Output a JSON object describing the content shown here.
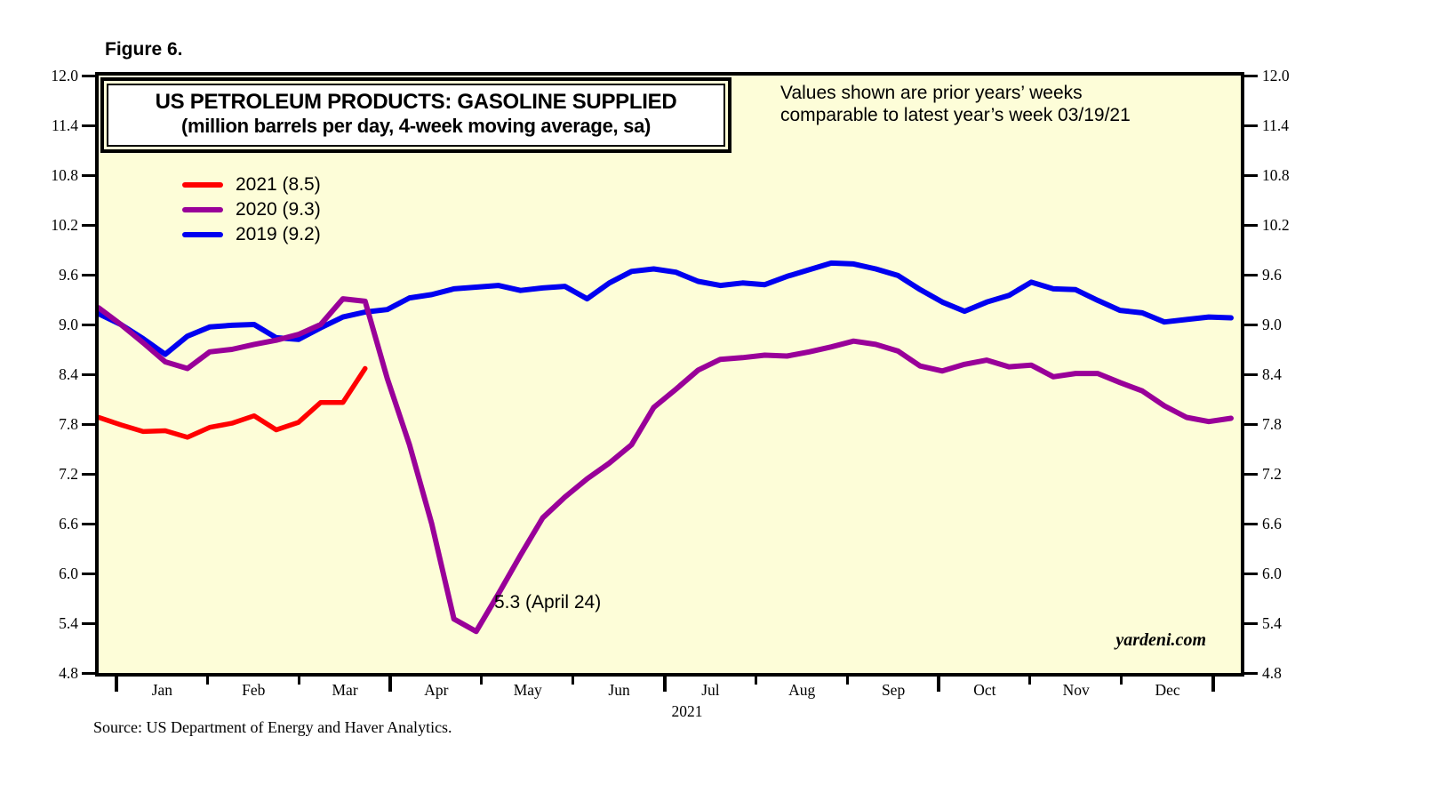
{
  "figure_label": "Figure 6.",
  "header": {
    "title_line1": "US PETROLEUM PRODUCTS: GASOLINE SUPPLIED",
    "title_line2": "(million barrels per day, 4-week moving average, sa)",
    "note_line1": "Values shown are prior years’ weeks",
    "note_line2": "comparable to latest year’s week 03/19/21"
  },
  "legend": [
    {
      "label": "2021 (8.5)",
      "color": "#ff0000"
    },
    {
      "label": "2020 (9.3)",
      "color": "#990099"
    },
    {
      "label": "2019 (9.2)",
      "color": "#0000f0"
    }
  ],
  "annotation_label": "5.3 (April 24)",
  "watermark": "yardeni.com",
  "x_axis": {
    "year": "2021"
  },
  "y_axis": {
    "tick_labels": [
      "12.0",
      "11.4",
      "10.8",
      "10.2",
      "9.6",
      "9.0",
      "8.4",
      "7.8",
      "7.2",
      "6.6",
      "6.0",
      "5.4",
      "4.8"
    ]
  },
  "source": "Source: US Department of Energy and Haver Analytics.",
  "colors": {
    "plot_bg": "#fdfdd8",
    "series_2021": "#ff0000",
    "series_2020": "#990099",
    "series_2019": "#0000f0"
  },
  "chart_data": {
    "type": "line",
    "title": "US PETROLEUM PRODUCTS: GASOLINE SUPPLIED",
    "subtitle": "(million barrels per day, 4-week moving average, sa)",
    "x_unit": "weekly observations across one calendar year",
    "x_months": [
      "Jan",
      "Feb",
      "Mar",
      "Apr",
      "May",
      "Jun",
      "Jul",
      "Aug",
      "Sep",
      "Oct",
      "Nov",
      "Dec"
    ],
    "ylim": [
      4.8,
      12.0
    ],
    "y_tick_step": 0.6,
    "grid": false,
    "legend_position": "upper-left",
    "series": [
      {
        "name": "2021 (8.5)",
        "color": "#ff0000",
        "values": [
          7.88,
          7.79,
          7.71,
          7.72,
          7.64,
          7.76,
          7.81,
          7.9,
          7.73,
          7.82,
          8.06,
          8.06,
          8.47
        ]
      },
      {
        "name": "2020 (9.3)",
        "color": "#990099",
        "values": [
          9.2,
          9.0,
          8.78,
          8.55,
          8.47,
          8.67,
          8.7,
          8.76,
          8.81,
          8.88,
          9.0,
          9.31,
          9.28,
          8.35,
          7.55,
          6.6,
          5.45,
          5.3,
          5.75,
          6.22,
          6.67,
          6.92,
          7.14,
          7.33,
          7.55,
          8.0,
          8.22,
          8.45,
          8.58,
          8.6,
          8.63,
          8.62,
          8.67,
          8.73,
          8.8,
          8.76,
          8.68,
          8.5,
          8.44,
          8.52,
          8.57,
          8.49,
          8.51,
          8.37,
          8.41,
          8.41,
          8.3,
          8.2,
          8.02,
          7.88,
          7.83,
          7.87
        ]
      },
      {
        "name": "2019 (9.2)",
        "color": "#0000f0",
        "values": [
          9.13,
          9.0,
          8.83,
          8.64,
          8.86,
          8.97,
          8.99,
          9.0,
          8.84,
          8.82,
          8.96,
          9.09,
          9.15,
          9.18,
          9.32,
          9.36,
          9.43,
          9.45,
          9.47,
          9.41,
          9.44,
          9.46,
          9.31,
          9.5,
          9.64,
          9.67,
          9.63,
          9.52,
          9.47,
          9.5,
          9.48,
          9.58,
          9.66,
          9.74,
          9.73,
          9.67,
          9.59,
          9.42,
          9.27,
          9.16,
          9.27,
          9.35,
          9.51,
          9.43,
          9.42,
          9.29,
          9.17,
          9.14,
          9.03,
          9.06,
          9.09,
          9.08
        ]
      }
    ],
    "annotation": {
      "text": "5.3 (April 24)",
      "series": "2020",
      "week_index": 17,
      "value": 5.3
    }
  }
}
